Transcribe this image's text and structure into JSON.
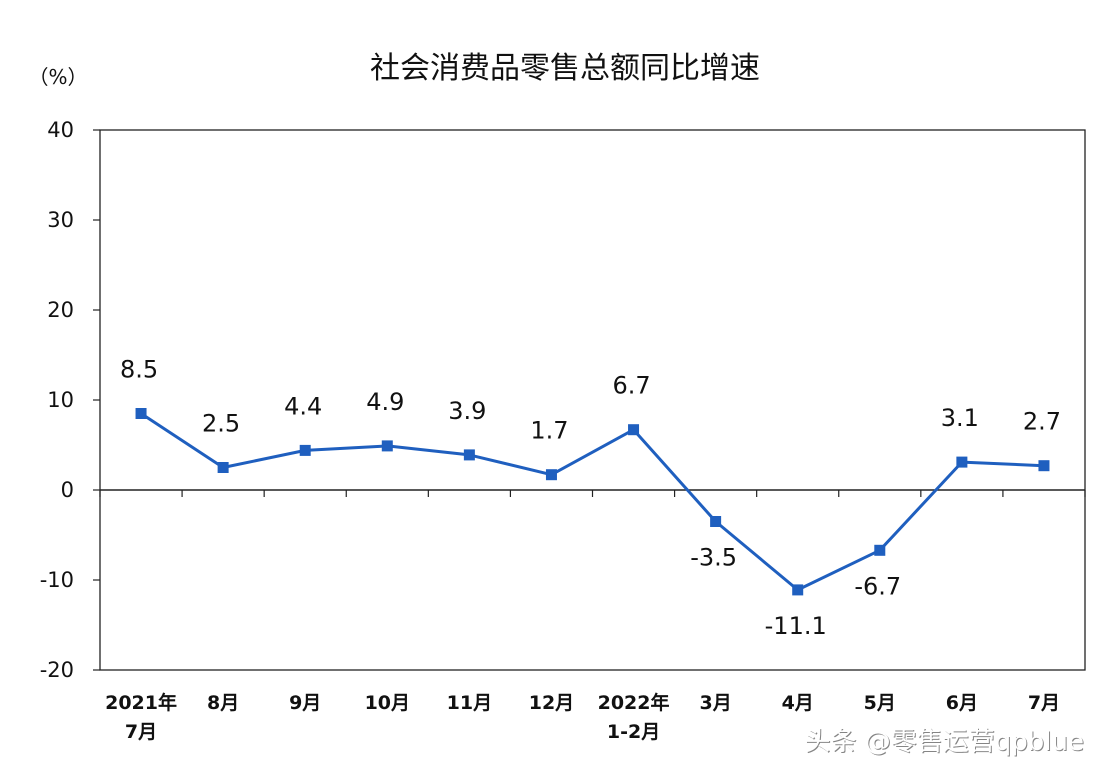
{
  "chart_data": {
    "type": "line",
    "title": "社会消费品零售总额同比增速",
    "unit": "（%）",
    "categories": [
      [
        "2021年",
        "7月"
      ],
      [
        "8月"
      ],
      [
        "9月"
      ],
      [
        "10月"
      ],
      [
        "11月"
      ],
      [
        "12月"
      ],
      [
        "2022年",
        "1-2月"
      ],
      [
        "3月"
      ],
      [
        "4月"
      ],
      [
        "5月"
      ],
      [
        "6月"
      ],
      [
        "7月"
      ]
    ],
    "series": [
      {
        "values": [
          8.5,
          2.5,
          4.4,
          4.9,
          3.9,
          1.7,
          6.7,
          -3.5,
          -11.1,
          -6.7,
          3.1,
          2.7
        ],
        "color": "#1f5fbf"
      }
    ],
    "data_labels": [
      "8.5",
      "2.5",
      "4.4",
      "4.9",
      "3.9",
      "1.7",
      "6.7",
      "-3.5",
      "-11.1",
      "-6.7",
      "3.1",
      "2.7"
    ],
    "ylim": [
      -20,
      40
    ],
    "yticks": [
      -20,
      -10,
      0,
      10,
      20,
      30,
      40
    ],
    "grid": false,
    "legend": "none"
  },
  "watermark": "头条 @零售运营qpblue"
}
